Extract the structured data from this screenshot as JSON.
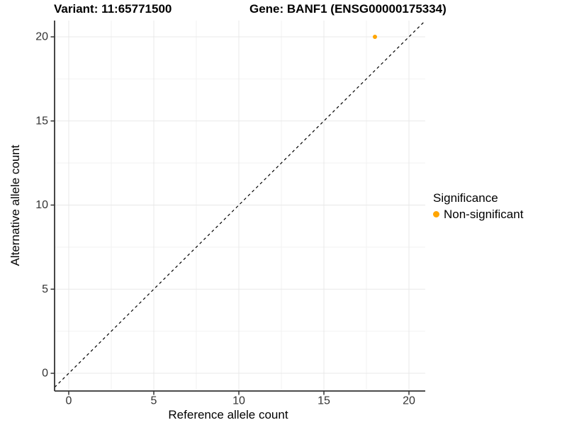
{
  "titles": {
    "variant": "Variant: 11:65771500",
    "gene": "Gene: BANF1 (ENSG00000175334)"
  },
  "axes": {
    "x_label": "Reference allele count",
    "y_label": "Alternative allele count"
  },
  "legend": {
    "title": "Significance",
    "items": [
      {
        "label": "Non-significant",
        "color": "#FFA500"
      }
    ]
  },
  "chart_data": {
    "type": "scatter",
    "title": "Variant: 11:65771500   Gene: BANF1 (ENSG00000175334)",
    "xlabel": "Reference allele count",
    "ylabel": "Alternative allele count",
    "xlim": [
      -1,
      21
    ],
    "ylim": [
      -1,
      21
    ],
    "x_ticks": [
      0,
      5,
      10,
      15,
      20
    ],
    "y_ticks": [
      0,
      5,
      10,
      15,
      20
    ],
    "x_minor_ticks": [
      2.5,
      7.5,
      12.5,
      17.5
    ],
    "y_minor_ticks": [
      2.5,
      7.5,
      12.5,
      17.5
    ],
    "grid": true,
    "legend_position": "right",
    "series": [
      {
        "name": "Non-significant",
        "color": "#FFA500",
        "points": [
          [
            18,
            20
          ]
        ]
      }
    ],
    "identity_line": {
      "slope": 1,
      "intercept": 0,
      "style": "dashed",
      "color": "#000000"
    }
  },
  "colors": {
    "point": "#FFA500",
    "axis_line": "#333333",
    "tick_text": "#333333",
    "grid_major": "#E8E8E8",
    "grid_minor": "#F2F2F2",
    "background": "#FFFFFF"
  }
}
